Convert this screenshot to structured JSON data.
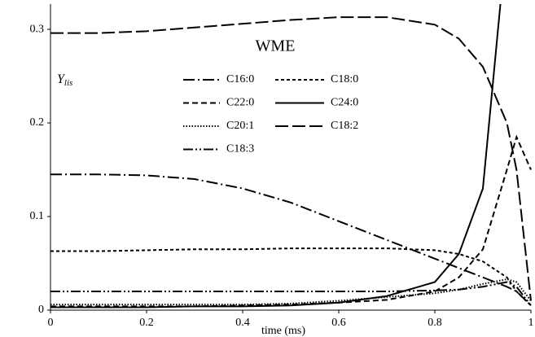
{
  "chart_data": {
    "type": "line",
    "annotation": "WME",
    "xlabel": "time (ms)",
    "ylabel": "Y",
    "ylabel_sub": "lis",
    "x": [
      0,
      0.1,
      0.2,
      0.3,
      0.4,
      0.5,
      0.6,
      0.7,
      0.8,
      0.85,
      0.9,
      0.95,
      0.97,
      1
    ],
    "xlim": [
      0,
      1
    ],
    "xticks": [
      0,
      0.2,
      0.4,
      0.6,
      0.8,
      1
    ],
    "ylim": [
      0,
      0.327
    ],
    "yticks": [
      0,
      0.1,
      0.2,
      0.3
    ],
    "grid": false,
    "series": [
      {
        "name": "C16:0",
        "color": "#000000",
        "dash": "14,4,2,4",
        "values": [
          0.145,
          0.145,
          0.144,
          0.14,
          0.13,
          0.115,
          0.095,
          0.075,
          0.055,
          0.045,
          0.035,
          0.025,
          0.02,
          0.005
        ]
      },
      {
        "name": "C18:0",
        "color": "#000000",
        "dash": "4,3",
        "values": [
          0.063,
          0.063,
          0.064,
          0.065,
          0.065,
          0.066,
          0.066,
          0.066,
          0.064,
          0.06,
          0.052,
          0.035,
          0.02,
          0.005
        ]
      },
      {
        "name": "C22:0",
        "color": "#000000",
        "dash": "7,4",
        "values": [
          0.004,
          0.004,
          0.004,
          0.004,
          0.005,
          0.006,
          0.008,
          0.011,
          0.02,
          0.035,
          0.065,
          0.15,
          0.185,
          0.15
        ]
      },
      {
        "name": "C24:0",
        "color": "#000000",
        "dash": "none",
        "values": [
          0.003,
          0.003,
          0.003,
          0.004,
          0.004,
          0.005,
          0.008,
          0.015,
          0.03,
          0.06,
          0.13,
          0.4,
          null,
          null
        ]
      },
      {
        "name": "C20:1",
        "color": "#000000",
        "dash": "1.5,2",
        "values": [
          0.006,
          0.006,
          0.006,
          0.006,
          0.006,
          0.007,
          0.01,
          0.014,
          0.018,
          0.022,
          0.028,
          0.033,
          0.03,
          0.01
        ]
      },
      {
        "name": "C18:2",
        "color": "#000000",
        "dash": "16,5",
        "values": [
          0.296,
          0.296,
          0.298,
          0.302,
          0.306,
          0.31,
          0.313,
          0.313,
          0.305,
          0.29,
          0.26,
          0.2,
          0.15,
          0.01
        ]
      },
      {
        "name": "C18:3",
        "color": "#000000",
        "dash": "12,3,2,3,2,3",
        "values": [
          0.02,
          0.02,
          0.02,
          0.02,
          0.02,
          0.02,
          0.02,
          0.02,
          0.021,
          0.022,
          0.025,
          0.03,
          0.025,
          0.005
        ]
      }
    ]
  }
}
